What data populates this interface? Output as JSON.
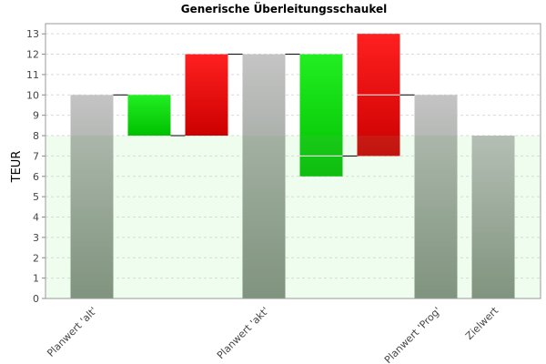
{
  "chart_data": {
    "type": "bar",
    "title": "Generische Überleitungsschaukel",
    "xlabel": "",
    "ylabel": "TEUR",
    "ylim": [
      0,
      13.5
    ],
    "yticks": [
      0,
      1,
      2,
      3,
      4,
      5,
      6,
      7,
      8,
      9,
      10,
      11,
      12,
      13
    ],
    "grid": true,
    "target_band_value": 8,
    "colors": {
      "total_bar_top": "#c4c4c4",
      "total_bar_bottom": "#808d7e",
      "increase_top": "#22ee22",
      "increase_bottom": "#00c000",
      "decrease_top": "#ff2020",
      "decrease_bottom": "#cc0000",
      "target_band": "#eefdee",
      "grid": "#d9d9d9"
    },
    "bars": [
      {
        "kind": "total",
        "start": 0,
        "end": 10,
        "label": "Planwert 'alt'"
      },
      {
        "kind": "increase",
        "start": 8,
        "end": 10,
        "label": ""
      },
      {
        "kind": "decrease",
        "start": 8,
        "end": 12,
        "label": ""
      },
      {
        "kind": "total",
        "start": 0,
        "end": 12,
        "label": "Planwert 'akt'"
      },
      {
        "kind": "increase",
        "start": 6,
        "end": 12,
        "label": ""
      },
      {
        "kind": "decrease",
        "start": 7,
        "end": 13,
        "label": ""
      },
      {
        "kind": "total",
        "start": 0,
        "end": 10,
        "label": "Planwert 'Prog'"
      },
      {
        "kind": "total",
        "start": 0,
        "end": 8,
        "label": "Zielwert"
      }
    ],
    "inner_lines": [
      {
        "bar": 4,
        "value": 7
      },
      {
        "bar": 5,
        "value": 10
      }
    ],
    "connectors": [
      {
        "from": 0,
        "to": 1,
        "value": 10
      },
      {
        "from": 1,
        "to": 2,
        "value": 8
      },
      {
        "from": 2,
        "to": 3,
        "value": 12
      },
      {
        "from": 3,
        "to": 4,
        "value": 12
      },
      {
        "from": 4,
        "to": 5,
        "value": 7
      },
      {
        "from": 5,
        "to": 6,
        "value": 10
      }
    ]
  }
}
